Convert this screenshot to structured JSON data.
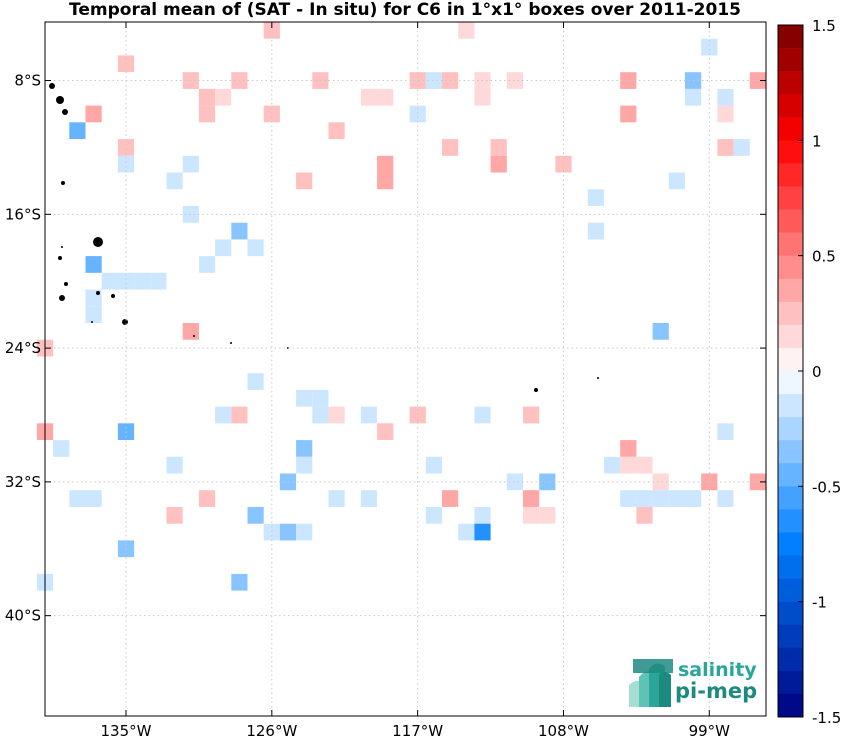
{
  "title": "Temporal mean of (SAT - In situ) for C6 in 1°x1° boxes over 2011-2015",
  "map": {
    "x_ticks": [
      {
        "lon": -135,
        "label": "135°W"
      },
      {
        "lon": -126,
        "label": "126°W"
      },
      {
        "lon": -117,
        "label": "117°W"
      },
      {
        "lon": -108,
        "label": "108°W"
      },
      {
        "lon": -99,
        "label": "99°W"
      }
    ],
    "y_ticks": [
      {
        "lat": -8,
        "label": "8°S"
      },
      {
        "lat": -16,
        "label": "16°S"
      },
      {
        "lat": -24,
        "label": "24°S"
      },
      {
        "lat": -32,
        "label": "32°S"
      },
      {
        "lat": -40,
        "label": "40°S"
      }
    ],
    "lon_range": [
      -140,
      -95.5
    ],
    "lat_range": [
      -46,
      -4.5
    ]
  },
  "colorbar": {
    "ticks": [
      {
        "value": 1.5,
        "label": "1.5"
      },
      {
        "value": 1,
        "label": "1"
      },
      {
        "value": 0.5,
        "label": "0.5"
      },
      {
        "value": 0,
        "label": "0"
      },
      {
        "value": -0.5,
        "label": "-0.5"
      },
      {
        "value": -1,
        "label": "-1"
      },
      {
        "value": -1.5,
        "label": "-1.5"
      }
    ],
    "range": [
      -1.5,
      1.5
    ],
    "n_colors": 30
  },
  "logo": {
    "line1": "salinity",
    "line2": "pi-mep",
    "colors": [
      "#2aa59a",
      "#1d8a80"
    ]
  },
  "chart_data": {
    "type": "heatmap",
    "title": "Temporal mean of (SAT - In situ) for C6 in 1°x1° boxes over 2011-2015",
    "units": "",
    "cells": [
      [
        -126,
        -5,
        0.2
      ],
      [
        -114,
        -5,
        0.1
      ],
      [
        -99,
        -6,
        -0.1
      ],
      [
        -135,
        -7,
        0.2
      ],
      [
        -131,
        -8,
        0.2
      ],
      [
        -128,
        -8,
        0.2
      ],
      [
        -123,
        -8,
        0.2
      ],
      [
        -117,
        -8,
        0.2
      ],
      [
        -116,
        -8,
        -0.1
      ],
      [
        -115,
        -8,
        0.2
      ],
      [
        -113,
        -8,
        0.1
      ],
      [
        -111,
        -8,
        0.1
      ],
      [
        -104,
        -8,
        0.3
      ],
      [
        -100,
        -8,
        -0.3
      ],
      [
        -96,
        -8,
        0.4
      ],
      [
        -130,
        -9,
        0.2
      ],
      [
        -129,
        -9,
        0.1
      ],
      [
        -120,
        -9,
        0.1
      ],
      [
        -119,
        -9,
        0.1
      ],
      [
        -113,
        -9,
        0.1
      ],
      [
        -100,
        -9,
        -0.1
      ],
      [
        -98,
        -9,
        -0.1
      ],
      [
        -137,
        -10,
        0.3
      ],
      [
        -130,
        -10,
        0.2
      ],
      [
        -126,
        -10,
        0.2
      ],
      [
        -117,
        -10,
        -0.1
      ],
      [
        -104,
        -10,
        0.3
      ],
      [
        -98,
        -10,
        0.1
      ],
      [
        -138,
        -11,
        -0.5
      ],
      [
        -122,
        -11,
        0.2
      ],
      [
        -135,
        -12,
        0.2
      ],
      [
        -115,
        -12,
        0.2
      ],
      [
        -112,
        -12,
        0.2
      ],
      [
        -98,
        -12,
        0.2
      ],
      [
        -97,
        -12,
        -0.1
      ],
      [
        -135,
        -13,
        -0.1
      ],
      [
        -131,
        -13,
        -0.1
      ],
      [
        -119,
        -13,
        0.3
      ],
      [
        -112,
        -13,
        0.3
      ],
      [
        -108,
        -13,
        0.2
      ],
      [
        -132,
        -14,
        -0.1
      ],
      [
        -124,
        -14,
        0.2
      ],
      [
        -119,
        -14,
        0.4
      ],
      [
        -101,
        -14,
        -0.1
      ],
      [
        -106,
        -15,
        -0.1
      ],
      [
        -131,
        -16,
        -0.2
      ],
      [
        -128,
        -17,
        -0.3
      ],
      [
        -106,
        -17,
        -0.1
      ],
      [
        -129,
        -18,
        -0.1
      ],
      [
        -127,
        -18,
        -0.1
      ],
      [
        -137,
        -19,
        -0.5
      ],
      [
        -130,
        -19,
        -0.1
      ],
      [
        -136,
        -20,
        -0.1
      ],
      [
        -135,
        -20,
        -0.1
      ],
      [
        -134,
        -20,
        -0.1
      ],
      [
        -133,
        -20,
        -0.1
      ],
      [
        -137,
        -21,
        -0.1
      ],
      [
        -137,
        -22,
        -0.2
      ],
      [
        -131,
        -23,
        0.3
      ],
      [
        -102,
        -23,
        -0.3
      ],
      [
        -140,
        -24,
        0.2
      ],
      [
        -127,
        -26,
        -0.1
      ],
      [
        -124,
        -27,
        -0.1
      ],
      [
        -123,
        -27,
        -0.1
      ],
      [
        -129,
        -28,
        -0.2
      ],
      [
        -128,
        -28,
        0.2
      ],
      [
        -123,
        -28,
        -0.1
      ],
      [
        -122,
        -28,
        0.1
      ],
      [
        -120,
        -28,
        -0.2
      ],
      [
        -117,
        -28,
        0.2
      ],
      [
        -113,
        -28,
        -0.1
      ],
      [
        -110,
        -28,
        0.2
      ],
      [
        -140,
        -29,
        0.3
      ],
      [
        -135,
        -29,
        -0.5
      ],
      [
        -119,
        -29,
        0.2
      ],
      [
        -98,
        -29,
        -0.1
      ],
      [
        -139,
        -30,
        -0.1
      ],
      [
        -124,
        -30,
        -0.4
      ],
      [
        -104,
        -30,
        0.4
      ],
      [
        -132,
        -31,
        -0.1
      ],
      [
        -124,
        -31,
        -0.1
      ],
      [
        -116,
        -31,
        -0.1
      ],
      [
        -105,
        -31,
        -0.1
      ],
      [
        -104,
        -31,
        0.1
      ],
      [
        -103,
        -31,
        0.1
      ],
      [
        -125,
        -32,
        -0.4
      ],
      [
        -111,
        -32,
        -0.1
      ],
      [
        -109,
        -32,
        -0.3
      ],
      [
        -102,
        -32,
        0.1
      ],
      [
        -99,
        -32,
        0.3
      ],
      [
        -96,
        -32,
        0.3
      ],
      [
        -138,
        -33,
        -0.1
      ],
      [
        -137,
        -33,
        -0.2
      ],
      [
        -130,
        -33,
        0.2
      ],
      [
        -122,
        -33,
        -0.1
      ],
      [
        -120,
        -33,
        -0.1
      ],
      [
        -115,
        -33,
        0.3
      ],
      [
        -110,
        -33,
        0.3
      ],
      [
        -104,
        -33,
        -0.2
      ],
      [
        -103,
        -33,
        -0.2
      ],
      [
        -102,
        -33,
        -0.2
      ],
      [
        -101,
        -33,
        -0.2
      ],
      [
        -100,
        -33,
        -0.1
      ],
      [
        -98,
        -33,
        -0.1
      ],
      [
        -132,
        -34,
        0.2
      ],
      [
        -127,
        -34,
        -0.3
      ],
      [
        -116,
        -34,
        -0.1
      ],
      [
        -113,
        -34,
        -0.1
      ],
      [
        -110,
        -34,
        0.1
      ],
      [
        -109,
        -34,
        0.1
      ],
      [
        -103,
        -34,
        0.2
      ],
      [
        -126,
        -35,
        -0.2
      ],
      [
        -125,
        -35,
        -0.4
      ],
      [
        -124,
        -35,
        -0.1
      ],
      [
        -114,
        -35,
        -0.1
      ],
      [
        -113,
        -35,
        -0.7
      ],
      [
        -135,
        -36,
        -0.3
      ],
      [
        -140,
        -38,
        -0.1
      ],
      [
        -128,
        -38,
        -0.3
      ]
    ]
  }
}
